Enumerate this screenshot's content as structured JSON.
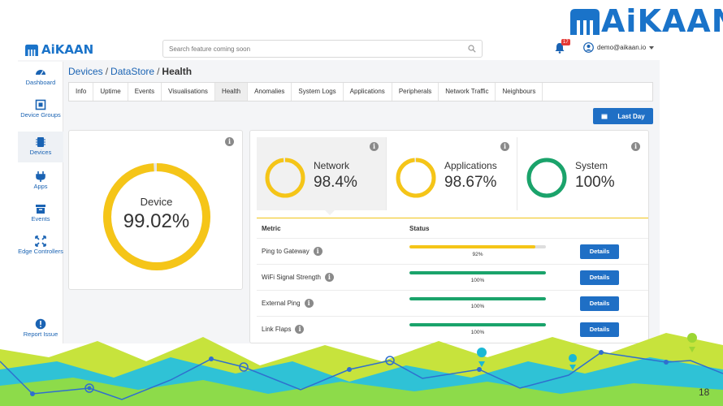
{
  "brand": {
    "name_ai": "Ai",
    "name_rest": "KAAN"
  },
  "app_logo": {
    "ai": "Ai",
    "rest": "KAAN"
  },
  "search": {
    "placeholder": "Search feature coming soon"
  },
  "notifications": {
    "count": "17"
  },
  "user": {
    "email": "demo@aikaan.io"
  },
  "sidebar": {
    "items": [
      {
        "label": "Dashboard",
        "icon": "dashboard-icon"
      },
      {
        "label": "Device Groups",
        "icon": "device-groups-icon"
      },
      {
        "label": "Devices",
        "icon": "devices-icon"
      },
      {
        "label": "Apps",
        "icon": "apps-icon"
      },
      {
        "label": "Events",
        "icon": "events-icon"
      },
      {
        "label": "Edge Controllers",
        "icon": "edge-controllers-icon"
      },
      {
        "label": "Report Issue",
        "icon": "report-issue-icon"
      }
    ]
  },
  "breadcrumb": {
    "level1": "Devices",
    "level2": "DataStore",
    "current": "Health"
  },
  "tabs": [
    "Info",
    "Uptime",
    "Events",
    "Visualisations",
    "Health",
    "Anomalies",
    "System Logs",
    "Applications",
    "Peripherals",
    "Network Traffic",
    "Neighbours"
  ],
  "active_tab": "Health",
  "time_range": {
    "label": "Last Day"
  },
  "device": {
    "label": "Device",
    "value": "99.02%",
    "fraction": 0.9902
  },
  "kpis": [
    {
      "label": "Network",
      "value": "98.4%",
      "fraction": 0.984,
      "color": "#f5c518"
    },
    {
      "label": "Applications",
      "value": "98.67%",
      "fraction": 0.9867,
      "color": "#f5c518"
    },
    {
      "label": "System",
      "value": "100%",
      "fraction": 1.0,
      "color": "#1aa36b"
    }
  ],
  "metrics_table": {
    "headers": {
      "metric": "Metric",
      "status": "Status"
    },
    "rows": [
      {
        "metric": "Ping to Gateway",
        "percent": "92%",
        "fraction": 0.92,
        "color": "#f5c518",
        "action": "Details"
      },
      {
        "metric": "WiFi Signal Strength",
        "percent": "100%",
        "fraction": 1.0,
        "color": "#1aa36b",
        "action": "Details"
      },
      {
        "metric": "External Ping",
        "percent": "100%",
        "fraction": 1.0,
        "color": "#1aa36b",
        "action": "Details"
      },
      {
        "metric": "Link Flaps",
        "percent": "100%",
        "fraction": 1.0,
        "color": "#1aa36b",
        "action": "Details"
      }
    ]
  },
  "slide_number": "18",
  "colors": {
    "accent": "#1f6fc5",
    "yellow": "#f5c518",
    "green": "#1aa36b"
  }
}
